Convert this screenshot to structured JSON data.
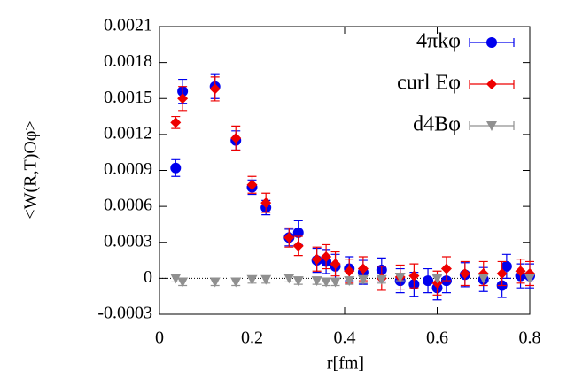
{
  "chart_data": {
    "type": "scatter",
    "xlabel": "r[fm]",
    "ylabel": "<W(R,T)Oφ>",
    "xlim": [
      0,
      0.8
    ],
    "ylim": [
      -0.0003,
      0.0021
    ],
    "xticks": [
      0,
      0.2,
      0.4,
      0.6,
      0.8
    ],
    "yticks": [
      -0.0003,
      0,
      0.0003,
      0.0006,
      0.0009,
      0.0012,
      0.0015,
      0.0018,
      0.0021
    ],
    "zero_line": true,
    "legend": "top right",
    "series": [
      {
        "name": "4πkφ",
        "color": "#0000ee",
        "marker": "circle",
        "x": [
          0.035,
          0.05,
          0.12,
          0.165,
          0.2,
          0.23,
          0.28,
          0.3,
          0.34,
          0.36,
          0.38,
          0.41,
          0.44,
          0.48,
          0.52,
          0.55,
          0.58,
          0.6,
          0.62,
          0.66,
          0.7,
          0.74,
          0.75,
          0.78,
          0.8
        ],
        "values": [
          0.00092,
          0.00156,
          0.0016,
          0.00115,
          0.00076,
          0.00059,
          0.00034,
          0.00038,
          0.00015,
          0.00014,
          0.0001,
          8e-05,
          5e-05,
          7e-05,
          -2e-05,
          -5e-05,
          -2e-05,
          -8e-05,
          -2e-05,
          3e-05,
          -1e-05,
          -6e-05,
          0.0001,
          2e-05,
          2e-05
        ],
        "errors": [
          7e-05,
          0.0001,
          0.0001,
          8e-05,
          6e-05,
          6e-05,
          7e-05,
          0.0001,
          0.0001,
          0.0001,
          0.0001,
          0.0001,
          0.0001,
          0.0001,
          0.0001,
          0.0001,
          0.0001,
          0.0001,
          0.0001,
          0.0001,
          0.0001,
          0.0001,
          0.0001,
          0.0001,
          0.0001
        ]
      },
      {
        "name": "curl Eφ",
        "color": "#ee0000",
        "marker": "diamond",
        "x": [
          0.035,
          0.05,
          0.12,
          0.165,
          0.2,
          0.23,
          0.28,
          0.3,
          0.34,
          0.36,
          0.38,
          0.41,
          0.44,
          0.48,
          0.52,
          0.55,
          0.6,
          0.62,
          0.66,
          0.7,
          0.74,
          0.78,
          0.8
        ],
        "values": [
          0.0013,
          0.0015,
          0.00158,
          0.00117,
          0.00078,
          0.00063,
          0.00034,
          0.00027,
          0.00016,
          0.00018,
          0.00012,
          6e-05,
          8e-05,
          0,
          1e-05,
          2e-05,
          -4e-05,
          8e-05,
          4e-05,
          4e-05,
          4e-05,
          6e-05,
          4e-05
        ],
        "errors": [
          5e-05,
          0.0001,
          0.0001,
          0.0001,
          7e-05,
          8e-05,
          8e-05,
          8e-05,
          0.0001,
          0.0001,
          0.0001,
          0.0001,
          0.0001,
          0.0001,
          0.0001,
          0.0001,
          0.0001,
          0.0001,
          0.0001,
          0.0001,
          0.0001,
          0.0001,
          0.0001
        ]
      },
      {
        "name": "d4Bφ",
        "color": "#909090",
        "marker": "triangle-down",
        "x": [
          0.035,
          0.05,
          0.12,
          0.165,
          0.2,
          0.23,
          0.28,
          0.3,
          0.34,
          0.36,
          0.38,
          0.41,
          0.44,
          0.48,
          0.52,
          0.6,
          0.7,
          0.8
        ],
        "values": [
          0,
          -3e-05,
          -3e-05,
          -3e-05,
          -1e-05,
          -1e-05,
          0,
          -2e-05,
          -2e-05,
          -3e-05,
          -3e-05,
          -2e-05,
          -1e-05,
          -1e-05,
          1e-05,
          0,
          0,
          0
        ],
        "errors": [
          3e-05,
          3e-05,
          3e-05,
          3e-05,
          3e-05,
          3e-05,
          3e-05,
          3e-05,
          3e-05,
          3e-05,
          3e-05,
          3e-05,
          3e-05,
          3e-05,
          3e-05,
          3e-05,
          3e-05,
          3e-05
        ]
      }
    ]
  }
}
